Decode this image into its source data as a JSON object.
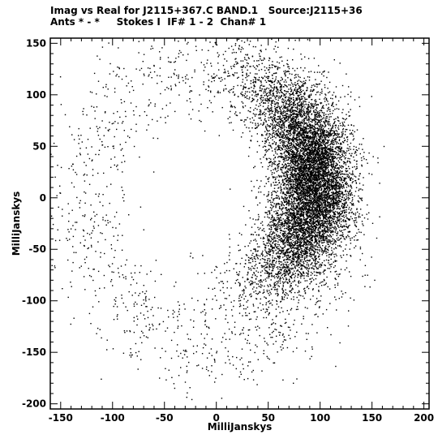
{
  "header": {
    "line1": "Imag vs Real for J2115+367.C BAND.1   Source:J2115+36",
    "line2": "Ants * - *     Stokes I  IF# 1 - 2  Chan# 1"
  },
  "chart_data": {
    "type": "scatter",
    "title": "Imag vs Real for J2115+367.C BAND.1   Source:J2115+36",
    "subtitle": "Ants * - *     Stokes I  IF# 1 - 2  Chan# 1",
    "xlabel": "MilliJanskys",
    "ylabel": "MilliJanskys",
    "xlim": [
      -160,
      205
    ],
    "ylim": [
      -205,
      155
    ],
    "xticks": [
      -150,
      -100,
      -50,
      0,
      50,
      100,
      150,
      200
    ],
    "yticks": [
      -200,
      -150,
      -100,
      -50,
      0,
      50,
      100,
      150
    ],
    "grid": false,
    "legend": "none",
    "point_color": "#000000",
    "series": [
      {
        "description_of_distribution": "crescent",
        "dense_core": [
          [
            100,
            20
          ],
          [
            100,
            0
          ],
          [
            98,
            -20
          ],
          [
            95,
            40
          ],
          [
            92,
            -40
          ],
          [
            88,
            60
          ],
          [
            85,
            -60
          ],
          [
            78,
            80
          ],
          [
            80,
            -80
          ],
          [
            70,
            95
          ],
          [
            70,
            -95
          ],
          [
            60,
            105
          ],
          [
            55,
            -105
          ],
          [
            110,
            10
          ],
          [
            112,
            -10
          ]
        ],
        "sparse_arc": [
          [
            40,
            115
          ],
          [
            20,
            125
          ],
          [
            0,
            130
          ],
          [
            -20,
            135
          ],
          [
            -50,
            140
          ],
          [
            -80,
            115
          ],
          [
            -110,
            80
          ],
          [
            -130,
            50
          ],
          [
            -140,
            0
          ],
          [
            -140,
            -30
          ],
          [
            -130,
            -60
          ],
          [
            -110,
            -90
          ],
          [
            -80,
            -110
          ],
          [
            -50,
            -130
          ],
          [
            -20,
            -150
          ],
          [
            0,
            -165
          ],
          [
            20,
            -150
          ],
          [
            -30,
            -180
          ],
          [
            -5,
            -190
          ]
        ]
      }
    ]
  }
}
